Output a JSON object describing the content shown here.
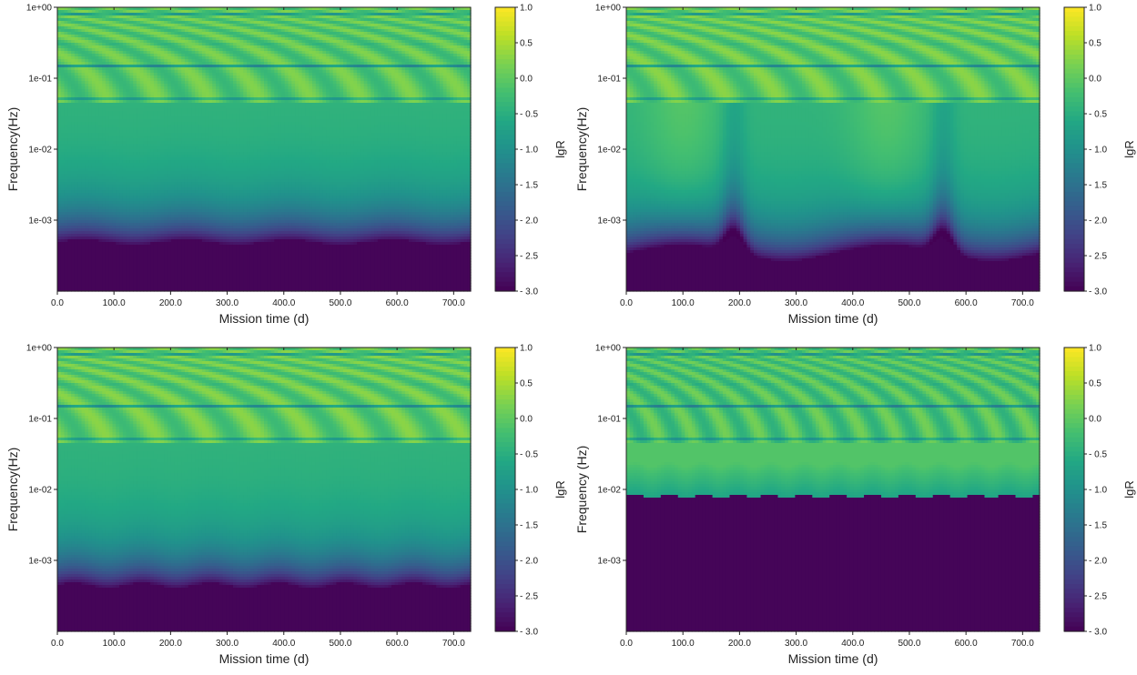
{
  "chart_data": [
    {
      "type": "heatmap",
      "panel": "top-left",
      "xlabel": "Mission time  (d)",
      "ylabel": "Frequency(Hz)",
      "xlim": [
        0,
        730
      ],
      "xticks": [
        "0.0",
        "100.0",
        "200.0",
        "300.0",
        "400.0",
        "500.0",
        "600.0",
        "700.0"
      ],
      "ylim": [
        0.0001,
        1.0
      ],
      "yscale": "log",
      "yticks": [
        "1e+00",
        "1e-01",
        "1e-02",
        "1e-03"
      ],
      "colorbar": {
        "label": "lgR",
        "range": [
          -3.0,
          1.0
        ],
        "ticks": [
          "1.0",
          "0.5",
          "0.0",
          "- 0.5",
          "- 1.0",
          "- 1.5",
          "- 2.0",
          "- 2.5",
          "- 3.0"
        ],
        "colormap": "viridis"
      },
      "features": {
        "floor_freq_hz": 0.00055,
        "notch_freqs_hz": [
          0.05,
          0.1,
          0.15,
          0.2,
          0.25,
          0.3,
          0.35,
          0.4,
          0.45,
          0.5,
          0.55,
          0.6,
          0.65,
          0.7,
          0.75,
          0.8,
          0.85,
          0.9,
          0.95
        ],
        "peak_lgR": 0.3,
        "modulation_period_d": 182
      }
    },
    {
      "type": "heatmap",
      "panel": "top-right",
      "xlabel": "Mission time  (d)",
      "ylabel": "Frequency(Hz)",
      "xlim": [
        0,
        730
      ],
      "xticks": [
        "0.0",
        "100.0",
        "200.0",
        "300.0",
        "400.0",
        "500.0",
        "600.0",
        "700.0"
      ],
      "ylim": [
        0.0001,
        1.0
      ],
      "yscale": "log",
      "yticks": [
        "1e+00",
        "1e-01",
        "1e-02",
        "1e-03"
      ],
      "colorbar": {
        "label": "lgR",
        "range": [
          -3.0,
          1.0
        ],
        "ticks": [
          "1.0",
          "0.5",
          "0.0",
          "- 0.5",
          "- 1.0",
          "- 1.5",
          "- 2.0",
          "- 2.5",
          "- 3.0"
        ],
        "colormap": "viridis"
      },
      "features": {
        "floor_freq_hz": 0.0005,
        "notch_freqs_hz": [
          0.05,
          0.1,
          0.15,
          0.2,
          0.25,
          0.3,
          0.35,
          0.4,
          0.45,
          0.5,
          0.55,
          0.6,
          0.65,
          0.7,
          0.75,
          0.8,
          0.85,
          0.9,
          0.95
        ],
        "peak_lgR": 0.35,
        "dips_at_d": [
          190,
          560
        ]
      }
    },
    {
      "type": "heatmap",
      "panel": "bottom-left",
      "xlabel": "Mission time  (d)",
      "ylabel": "Frequency(Hz)",
      "xlim": [
        0,
        730
      ],
      "xticks": [
        "0.0",
        "100.0",
        "200.0",
        "300.0",
        "400.0",
        "500.0",
        "600.0",
        "700.0"
      ],
      "ylim": [
        0.0001,
        1.0
      ],
      "yscale": "log",
      "yticks": [
        "1e+00",
        "1e-01",
        "1e-02",
        "1e-03"
      ],
      "colorbar": {
        "label": "lgR",
        "range": [
          -3.0,
          1.0
        ],
        "ticks": [
          "1.0",
          "0.5",
          "0.0",
          "- 0.5",
          "- 1.0",
          "- 1.5",
          "- 2.0",
          "- 2.5",
          "- 3.0"
        ],
        "colormap": "viridis"
      },
      "features": {
        "floor_freq_hz": 0.0005,
        "notch_freqs_hz": [
          0.05,
          0.1,
          0.15,
          0.2,
          0.25,
          0.3,
          0.35,
          0.4,
          0.45,
          0.5,
          0.55,
          0.6,
          0.65,
          0.7,
          0.75,
          0.8,
          0.85,
          0.9,
          0.95
        ],
        "peak_lgR": 0.35,
        "modulation_period_d": 120
      }
    },
    {
      "type": "heatmap",
      "panel": "bottom-right",
      "xlabel": "Mission time  (d)",
      "ylabel": "Frequency (Hz)",
      "xlim": [
        0,
        730
      ],
      "xticks": [
        "0.0",
        "100.0",
        "200.0",
        "300.0",
        "400.0",
        "500.0",
        "600.0",
        "700.0"
      ],
      "ylim": [
        0.0001,
        1.0
      ],
      "yscale": "log",
      "yticks": [
        "1e+00",
        "1e-01",
        "1e-02",
        "1e-03"
      ],
      "colorbar": {
        "label": "lgR",
        "range": [
          -3.0,
          1.0
        ],
        "ticks": [
          "1.0",
          "0.5",
          "0.0",
          "- 0.5",
          "- 1.0",
          "- 1.5",
          "- 2.0",
          "- 2.5",
          "- 3.0"
        ],
        "colormap": "viridis"
      },
      "features": {
        "floor_freq_hz": 0.009,
        "notch_freqs_hz": [
          0.05,
          0.1,
          0.15,
          0.2,
          0.25,
          0.3,
          0.35,
          0.4,
          0.45,
          0.5,
          0.55,
          0.6,
          0.65,
          0.7,
          0.75,
          0.8,
          0.85,
          0.9,
          0.95
        ],
        "peak_lgR": 0.2,
        "modulation_period_d": 60
      }
    }
  ]
}
